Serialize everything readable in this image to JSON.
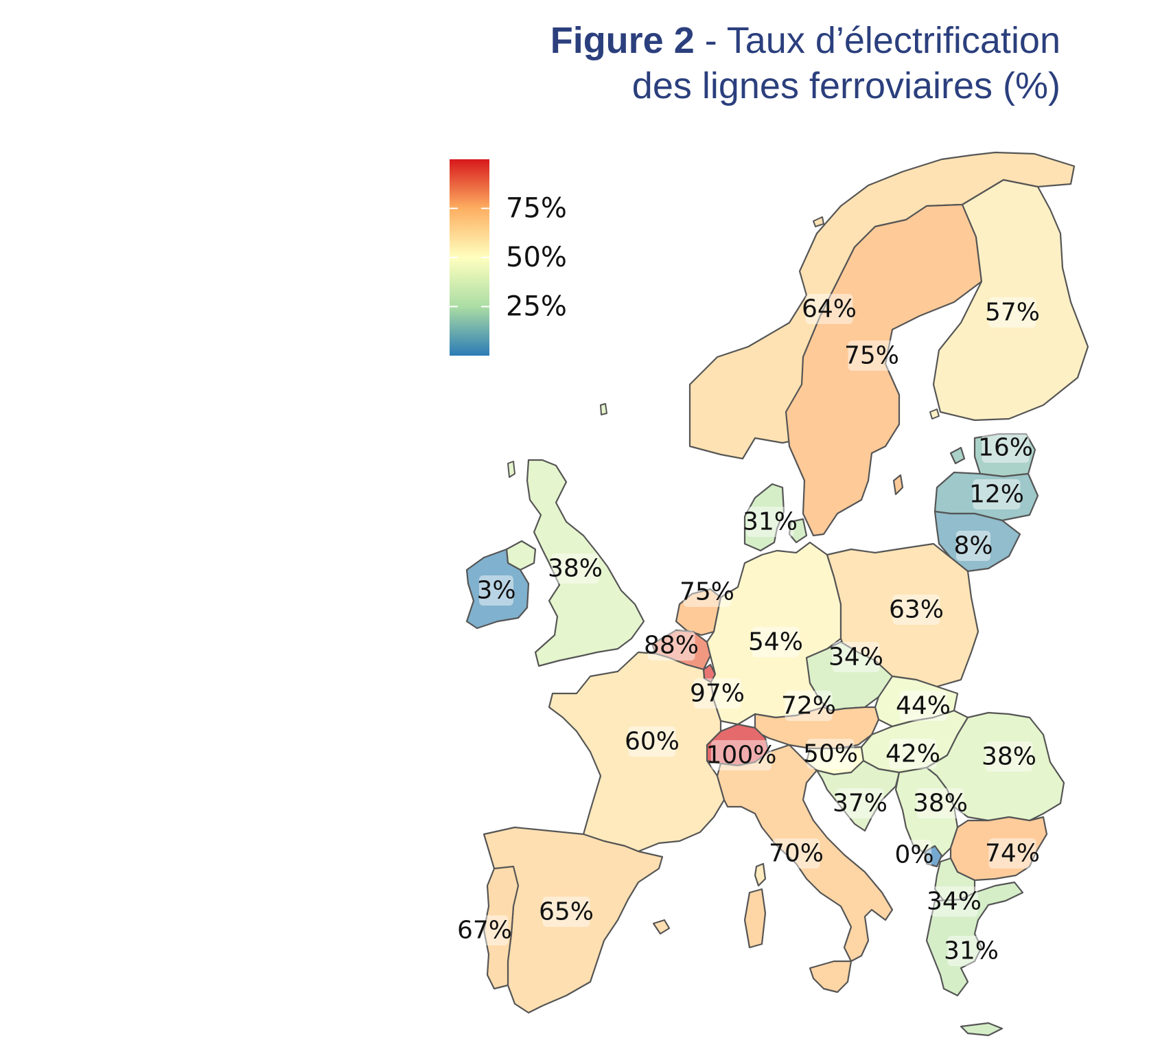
{
  "title": {
    "figure": "Figure 2",
    "rest_line1": " - Taux d’électrification",
    "line2": "des lignes ferroviaires (%)"
  },
  "legend": {
    "min": 0,
    "max": 100,
    "ticks": [
      {
        "value": 75,
        "label": "75%"
      },
      {
        "value": 50,
        "label": "50%"
      },
      {
        "value": 25,
        "label": "25%"
      }
    ],
    "colors": [
      "#2c7bb6",
      "#abdda4",
      "#ffffbf",
      "#fdae61",
      "#d7191c"
    ]
  },
  "countries": [
    {
      "id": "norway",
      "value": 64,
      "label": "64%"
    },
    {
      "id": "sweden",
      "value": 75,
      "label": "75%"
    },
    {
      "id": "finland",
      "value": 57,
      "label": "57%"
    },
    {
      "id": "estonia",
      "value": 16,
      "label": "16%"
    },
    {
      "id": "latvia",
      "value": 12,
      "label": "12%"
    },
    {
      "id": "lithuania",
      "value": 8,
      "label": "8%"
    },
    {
      "id": "denmark",
      "value": 31,
      "label": "31%"
    },
    {
      "id": "united-kingdom",
      "value": 38,
      "label": "38%"
    },
    {
      "id": "ireland",
      "value": 3,
      "label": "3%"
    },
    {
      "id": "netherlands",
      "value": 75,
      "label": "75%"
    },
    {
      "id": "belgium",
      "value": 88,
      "label": "88%"
    },
    {
      "id": "luxembourg",
      "value": 97,
      "label": "97%"
    },
    {
      "id": "germany",
      "value": 54,
      "label": "54%"
    },
    {
      "id": "poland",
      "value": 63,
      "label": "63%"
    },
    {
      "id": "czechia",
      "value": 34,
      "label": "34%"
    },
    {
      "id": "slovakia",
      "value": 44,
      "label": "44%"
    },
    {
      "id": "austria",
      "value": 72,
      "label": "72%"
    },
    {
      "id": "switzerland",
      "value": 100,
      "label": "100%"
    },
    {
      "id": "france",
      "value": 60,
      "label": "60%"
    },
    {
      "id": "slovenia",
      "value": 50,
      "label": "50%"
    },
    {
      "id": "hungary",
      "value": 42,
      "label": "42%"
    },
    {
      "id": "romania",
      "value": 38,
      "label": "38%"
    },
    {
      "id": "croatia",
      "value": 37,
      "label": "37%"
    },
    {
      "id": "serbia",
      "value": 38,
      "label": "38%"
    },
    {
      "id": "montenegro",
      "value": 0,
      "label": "0%"
    },
    {
      "id": "bulgaria",
      "value": 74,
      "label": "74%"
    },
    {
      "id": "north-macedonia",
      "value": 34,
      "label": "34%"
    },
    {
      "id": "greece",
      "value": 31,
      "label": "31%"
    },
    {
      "id": "italy",
      "value": 70,
      "label": "70%"
    },
    {
      "id": "spain",
      "value": 65,
      "label": "65%"
    },
    {
      "id": "portugal",
      "value": 67,
      "label": "67%"
    }
  ]
}
